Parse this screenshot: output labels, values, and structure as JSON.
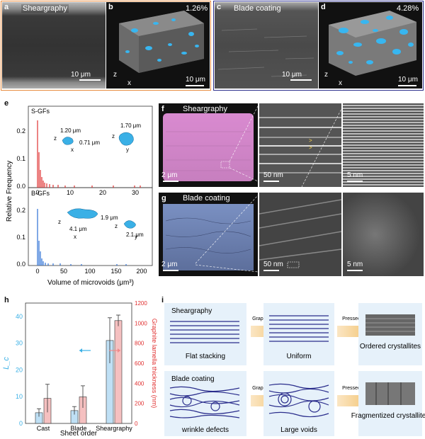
{
  "panels": {
    "a": {
      "letter": "a",
      "title": "Sheargraphy",
      "scale": "10 μm"
    },
    "b": {
      "letter": "b",
      "percent": "1.26%",
      "scale": "10 μm"
    },
    "c": {
      "letter": "c",
      "title": "Blade coating",
      "scale": "10 μm"
    },
    "d": {
      "letter": "d",
      "percent": "4.28%",
      "scale": "10 μm"
    },
    "e": {
      "letter": "e"
    },
    "f": {
      "letter": "f",
      "title": "Sheargraphy",
      "scale1": "2 μm",
      "scale2": "50 nm",
      "scale3": "5 nm"
    },
    "g": {
      "letter": "g",
      "title": "Blade coating",
      "scale1": "2 μm",
      "scale2": "50 nm",
      "scale3": "5 nm"
    },
    "h": {
      "letter": "h"
    },
    "i": {
      "letter": "i"
    }
  },
  "axes_xyz": {
    "x": "x",
    "y": "y",
    "z": "z"
  },
  "chart_e": {
    "ylabel": "Relative Frequency",
    "xlabel": "Volume of microvoids (μm³)",
    "top": {
      "name": "S-GFs",
      "dim1": "1.20 μm",
      "dim2": "0.71 μm",
      "dim3": "1.70 μm",
      "yticks": [
        "0.0",
        "0.1",
        "0.2"
      ],
      "xticks": [
        "0",
        "10",
        "20",
        "30"
      ]
    },
    "bottom": {
      "name": "B-GFs",
      "dim1": "4.1 μm",
      "dim2": "1.9 μm",
      "dim3": "2.1 μm",
      "yticks": [
        "0.0",
        "0.1",
        "0.2"
      ],
      "xticks": [
        "0",
        "50",
        "100",
        "150",
        "200"
      ]
    }
  },
  "chart_data": {
    "type": "bar",
    "categories": [
      "Cast",
      "Blade",
      "Sheargraphy"
    ],
    "xlabel": "Sheet order",
    "ylabel_left": "L_c",
    "ylabel_right": "Graphite lamella thickness (nm)",
    "series": [
      {
        "axis": "left",
        "values": [
          4,
          4.8,
          31
        ],
        "errors": [
          1.5,
          1.5,
          8.5
        ]
      },
      {
        "axis": "right",
        "values": [
          250,
          265,
          1025
        ],
        "errors": [
          140,
          110,
          55
        ]
      }
    ],
    "ylim_left": [
      0,
      45
    ],
    "ylim_right": [
      0,
      1200
    ],
    "yticks_left": [
      "0",
      "10",
      "20",
      "30",
      "40"
    ],
    "yticks_right": [
      "0",
      "200",
      "400",
      "600",
      "800",
      "1000",
      "1200"
    ]
  },
  "schematic": {
    "row1": {
      "method": "Sheargraphy",
      "step1": "Flat stacking",
      "step2": "Uniform",
      "step3": "Ordered crystallites",
      "arrow1": "Graphitized",
      "arrow2": "Pressed"
    },
    "row2": {
      "method": "Blade coating",
      "step1": "wrinkle defects",
      "step2": "Large voids",
      "step3": "Fragmentized crystallites",
      "arrow1": "Graphitized",
      "arrow2": "Pressed"
    }
  },
  "colors": {
    "orange": "#e88b3d",
    "navy": "#2a2d8c",
    "red": "#e03030",
    "blue": "#2b6fd6",
    "cyan": "#3ab0e6",
    "pink": "#f08a8a"
  }
}
